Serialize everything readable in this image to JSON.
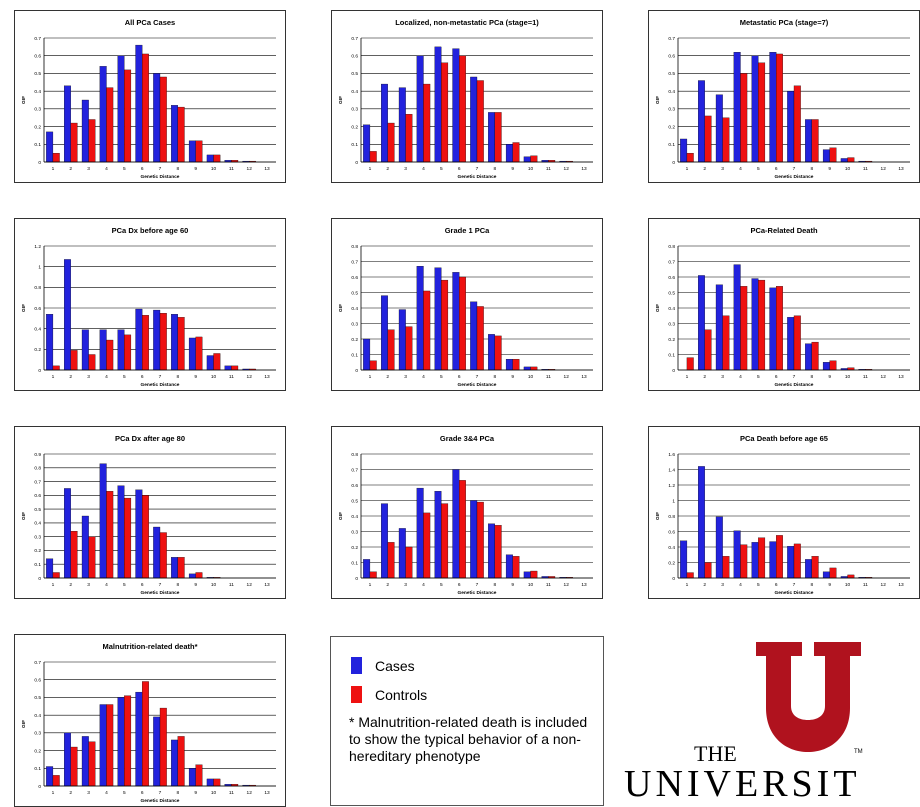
{
  "colors": {
    "cases": "#2222dd",
    "controls": "#ee1111",
    "logo": "#b0121e"
  },
  "axis": {
    "ylabel": "GIF",
    "xlabel": "Genetic Distance"
  },
  "chart_data": [
    {
      "type": "bar",
      "title": "All PCa Cases",
      "categories": [
        "1",
        "2",
        "3",
        "4",
        "5",
        "6",
        "7",
        "8",
        "9",
        "10",
        "11",
        "12",
        "13"
      ],
      "ylim": [
        0,
        0.7
      ],
      "yticks": [
        "0",
        "0.1",
        "0.2",
        "0.3",
        "0.4",
        "0.5",
        "0.6",
        "0.7"
      ],
      "series": [
        {
          "name": "Cases",
          "values": [
            0.17,
            0.43,
            0.35,
            0.54,
            0.6,
            0.66,
            0.5,
            0.32,
            0.12,
            0.04,
            0.01,
            0.005,
            0
          ]
        },
        {
          "name": "Controls",
          "values": [
            0.05,
            0.22,
            0.24,
            0.42,
            0.52,
            0.61,
            0.48,
            0.31,
            0.12,
            0.04,
            0.01,
            0.005,
            0
          ]
        }
      ]
    },
    {
      "type": "bar",
      "title": "Localized, non-metastatic PCa (stage=1)",
      "categories": [
        "1",
        "2",
        "3",
        "4",
        "5",
        "6",
        "7",
        "8",
        "9",
        "10",
        "11",
        "12",
        "13"
      ],
      "ylim": [
        0,
        0.7
      ],
      "yticks": [
        "0",
        "0.1",
        "0.2",
        "0.3",
        "0.4",
        "0.5",
        "0.6",
        "0.7"
      ],
      "series": [
        {
          "name": "Cases",
          "values": [
            0.21,
            0.44,
            0.42,
            0.6,
            0.65,
            0.64,
            0.48,
            0.28,
            0.1,
            0.03,
            0.01,
            0.005,
            0
          ]
        },
        {
          "name": "Controls",
          "values": [
            0.06,
            0.22,
            0.27,
            0.44,
            0.56,
            0.6,
            0.46,
            0.28,
            0.11,
            0.035,
            0.01,
            0.005,
            0
          ]
        }
      ]
    },
    {
      "type": "bar",
      "title": "Metastatic PCa (stage=7)",
      "categories": [
        "1",
        "2",
        "3",
        "4",
        "5",
        "6",
        "7",
        "8",
        "9",
        "10",
        "11",
        "12",
        "13"
      ],
      "ylim": [
        0,
        0.7
      ],
      "yticks": [
        "0",
        "0.1",
        "0.2",
        "0.3",
        "0.4",
        "0.5",
        "0.6",
        "0.7"
      ],
      "series": [
        {
          "name": "Cases",
          "values": [
            0.13,
            0.46,
            0.38,
            0.62,
            0.6,
            0.62,
            0.4,
            0.24,
            0.07,
            0.02,
            0.005,
            0,
            0
          ]
        },
        {
          "name": "Controls",
          "values": [
            0.05,
            0.26,
            0.25,
            0.5,
            0.56,
            0.61,
            0.43,
            0.24,
            0.08,
            0.025,
            0.005,
            0,
            0
          ]
        }
      ]
    },
    {
      "type": "bar",
      "title": "PCa Dx before age 60",
      "categories": [
        "1",
        "2",
        "3",
        "4",
        "5",
        "6",
        "7",
        "8",
        "9",
        "10",
        "11",
        "12",
        "13"
      ],
      "ylim": [
        0,
        1.2
      ],
      "yticks": [
        "0",
        "0.2",
        "0.4",
        "0.6",
        "0.8",
        "1",
        "1.2"
      ],
      "series": [
        {
          "name": "Cases",
          "values": [
            0.54,
            1.07,
            0.39,
            0.39,
            0.39,
            0.59,
            0.58,
            0.54,
            0.31,
            0.14,
            0.04,
            0.01,
            0
          ]
        },
        {
          "name": "Controls",
          "values": [
            0.04,
            0.19,
            0.15,
            0.29,
            0.34,
            0.53,
            0.55,
            0.51,
            0.32,
            0.16,
            0.04,
            0.01,
            0
          ]
        }
      ]
    },
    {
      "type": "bar",
      "title": "Grade 1 PCa",
      "categories": [
        "1",
        "2",
        "3",
        "4",
        "5",
        "6",
        "7",
        "8",
        "9",
        "10",
        "11",
        "12",
        "13"
      ],
      "ylim": [
        0,
        0.8
      ],
      "yticks": [
        "0",
        "0.1",
        "0.2",
        "0.3",
        "0.4",
        "0.5",
        "0.6",
        "0.7",
        "0.8"
      ],
      "series": [
        {
          "name": "Cases",
          "values": [
            0.2,
            0.48,
            0.39,
            0.67,
            0.66,
            0.63,
            0.44,
            0.23,
            0.07,
            0.02,
            0.005,
            0,
            0
          ]
        },
        {
          "name": "Controls",
          "values": [
            0.06,
            0.26,
            0.28,
            0.51,
            0.58,
            0.6,
            0.41,
            0.22,
            0.07,
            0.02,
            0.005,
            0,
            0
          ]
        }
      ]
    },
    {
      "type": "bar",
      "title": "PCa-Related Death",
      "categories": [
        "1",
        "2",
        "3",
        "4",
        "5",
        "6",
        "7",
        "8",
        "9",
        "10",
        "11",
        "12",
        "13"
      ],
      "ylim": [
        0,
        0.8
      ],
      "yticks": [
        "0",
        "0.1",
        "0.2",
        "0.3",
        "0.4",
        "0.5",
        "0.6",
        "0.7",
        "0.8"
      ],
      "series": [
        {
          "name": "Cases",
          "values": [
            0,
            0.61,
            0.55,
            0.68,
            0.59,
            0.53,
            0.34,
            0.17,
            0.05,
            0.01,
            0.005,
            0,
            0
          ]
        },
        {
          "name": "Controls",
          "values": [
            0.08,
            0.26,
            0.35,
            0.54,
            0.58,
            0.54,
            0.35,
            0.18,
            0.06,
            0.015,
            0.005,
            0,
            0
          ]
        }
      ]
    },
    {
      "type": "bar",
      "title": "PCa Dx after age 80",
      "categories": [
        "1",
        "2",
        "3",
        "4",
        "5",
        "6",
        "7",
        "8",
        "9",
        "10",
        "11",
        "12",
        "13"
      ],
      "ylim": [
        0,
        0.9
      ],
      "yticks": [
        "0",
        "0.1",
        "0.2",
        "0.3",
        "0.4",
        "0.5",
        "0.6",
        "0.7",
        "0.8",
        "0.9"
      ],
      "series": [
        {
          "name": "Cases",
          "values": [
            0.14,
            0.65,
            0.45,
            0.83,
            0.67,
            0.64,
            0.37,
            0.15,
            0.03,
            0.005,
            0,
            0,
            0
          ]
        },
        {
          "name": "Controls",
          "values": [
            0.04,
            0.34,
            0.3,
            0.63,
            0.58,
            0.6,
            0.33,
            0.15,
            0.04,
            0.005,
            0,
            0,
            0
          ]
        }
      ]
    },
    {
      "type": "bar",
      "title": "Grade 3&4 PCa",
      "categories": [
        "1",
        "2",
        "3",
        "4",
        "5",
        "6",
        "7",
        "8",
        "9",
        "10",
        "11",
        "12",
        "13"
      ],
      "ylim": [
        0,
        0.8
      ],
      "yticks": [
        "0",
        "0.1",
        "0.2",
        "0.3",
        "0.4",
        "0.5",
        "0.6",
        "0.7",
        "0.8"
      ],
      "series": [
        {
          "name": "Cases",
          "values": [
            0.12,
            0.48,
            0.32,
            0.58,
            0.56,
            0.7,
            0.5,
            0.35,
            0.15,
            0.04,
            0.01,
            0.005,
            0
          ]
        },
        {
          "name": "Controls",
          "values": [
            0.04,
            0.23,
            0.2,
            0.42,
            0.48,
            0.63,
            0.49,
            0.34,
            0.14,
            0.045,
            0.01,
            0.005,
            0
          ]
        }
      ]
    },
    {
      "type": "bar",
      "title": "PCa Death before age 65",
      "categories": [
        "1",
        "2",
        "3",
        "4",
        "5",
        "6",
        "7",
        "8",
        "9",
        "10",
        "11",
        "12",
        "13"
      ],
      "ylim": [
        0,
        1.6
      ],
      "yticks": [
        "0",
        "0.2",
        "0.4",
        "0.6",
        "0.8",
        "1",
        "1.2",
        "1.4",
        "1.6"
      ],
      "series": [
        {
          "name": "Cases",
          "values": [
            0.48,
            1.44,
            0.79,
            0.61,
            0.46,
            0.47,
            0.41,
            0.24,
            0.08,
            0.02,
            0.01,
            0,
            0
          ]
        },
        {
          "name": "Controls",
          "values": [
            0.07,
            0.2,
            0.28,
            0.43,
            0.52,
            0.55,
            0.44,
            0.28,
            0.13,
            0.04,
            0.01,
            0,
            0
          ]
        }
      ]
    },
    {
      "type": "bar",
      "title": "Malnutrition-related death*",
      "categories": [
        "1",
        "2",
        "3",
        "4",
        "5",
        "6",
        "7",
        "8",
        "9",
        "10",
        "11",
        "12",
        "13"
      ],
      "ylim": [
        0,
        0.7
      ],
      "yticks": [
        "0",
        "0.1",
        "0.2",
        "0.3",
        "0.4",
        "0.5",
        "0.6",
        "0.7"
      ],
      "series": [
        {
          "name": "Cases",
          "values": [
            0.11,
            0.3,
            0.28,
            0.46,
            0.5,
            0.53,
            0.39,
            0.26,
            0.1,
            0.04,
            0.01,
            0.005,
            0
          ]
        },
        {
          "name": "Controls",
          "values": [
            0.06,
            0.22,
            0.25,
            0.46,
            0.51,
            0.59,
            0.44,
            0.28,
            0.12,
            0.04,
            0.01,
            0.005,
            0
          ]
        }
      ]
    }
  ],
  "legend": {
    "cases_label": "Cases",
    "controls_label": "Controls",
    "footnote": "*    Malnutrition-related death is included to show the typical behavior of a non-hereditary phenotype"
  },
  "logo": {
    "the": "THE",
    "tm": "TM",
    "university": "UNIVERSIT"
  }
}
